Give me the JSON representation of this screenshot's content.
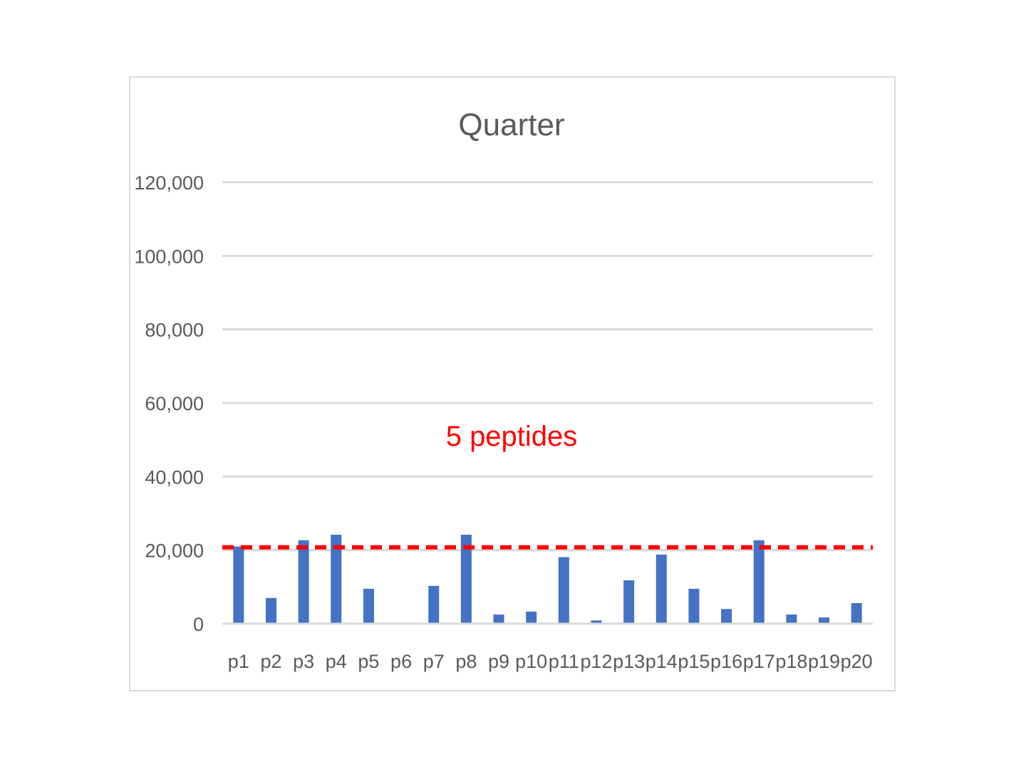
{
  "chart_data": {
    "type": "bar",
    "title": "Quarter",
    "xlabel": "",
    "ylabel": "",
    "categories": [
      "p1",
      "p2",
      "p3",
      "p4",
      "p5",
      "p6",
      "p7",
      "p8",
      "p9",
      "p10",
      "p11",
      "p12",
      "p13",
      "p14",
      "p15",
      "p16",
      "p17",
      "p18",
      "p19",
      "p20"
    ],
    "series": [
      {
        "values": [
          21000,
          7000,
          22700,
          24200,
          9500,
          0,
          10300,
          24200,
          2500,
          3300,
          18100,
          900,
          11800,
          18800,
          9500,
          4000,
          22700,
          2500,
          1700,
          5600
        ]
      }
    ],
    "ylim": [
      0,
      120000
    ],
    "yticks": [
      0,
      20000,
      40000,
      60000,
      80000,
      100000,
      120000
    ],
    "ytick_labels": [
      "0",
      "20,000",
      "40,000",
      "60,000",
      "80,000",
      "100,000",
      "120,000"
    ],
    "grid": true,
    "legend": "none",
    "bar_color": "#4472c4",
    "reference_line": {
      "value": 20000,
      "color": "#ff0000",
      "style": "dashed"
    },
    "annotation": {
      "text": "5 peptides",
      "color": "#ff0000"
    }
  }
}
